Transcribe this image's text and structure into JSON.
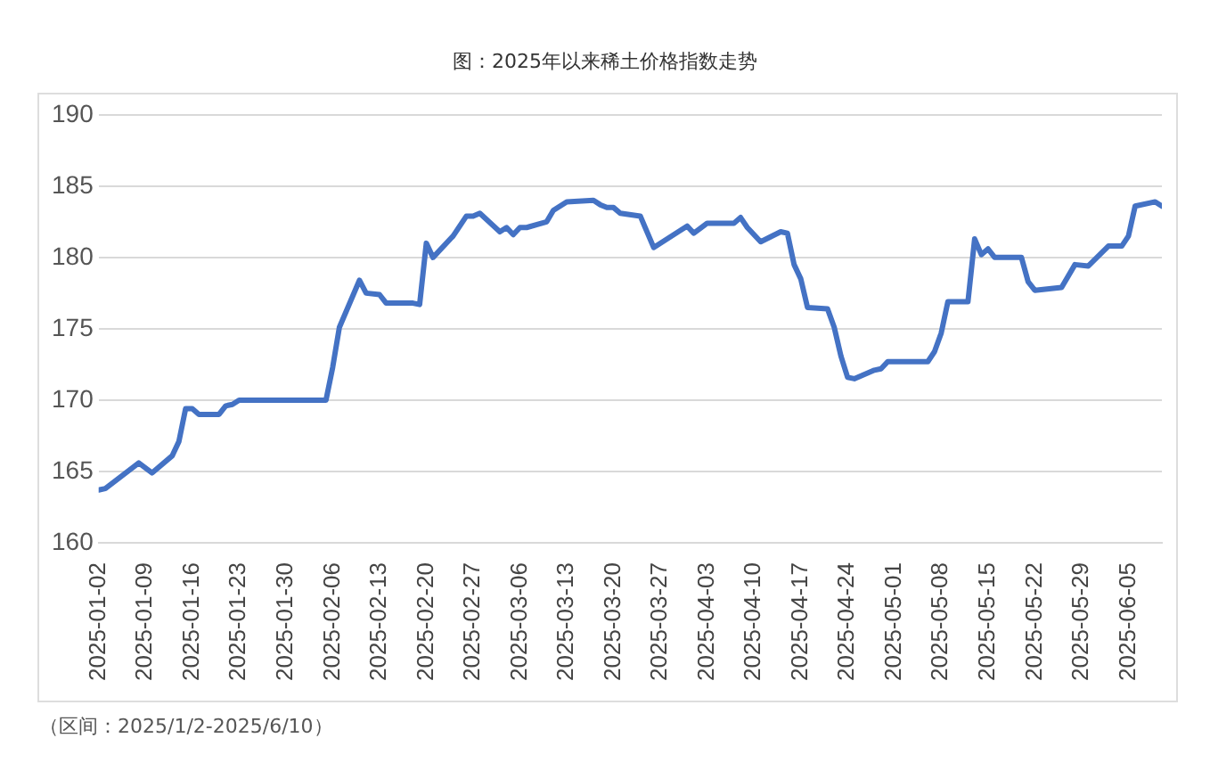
{
  "chart_data": {
    "type": "line",
    "title": "图：2025年以来稀土价格指数走势",
    "annotations": [
      "（区间：2025/1/2-2025/6/10）"
    ],
    "x": [
      "2025-01-02",
      "2025-01-03",
      "2025-01-08",
      "2025-01-10",
      "2025-01-13",
      "2025-01-14",
      "2025-01-15",
      "2025-01-16",
      "2025-01-17",
      "2025-01-20",
      "2025-01-21",
      "2025-01-22",
      "2025-01-23",
      "2025-02-05",
      "2025-02-06",
      "2025-02-07",
      "2025-02-10",
      "2025-02-11",
      "2025-02-13",
      "2025-02-14",
      "2025-02-18",
      "2025-02-19",
      "2025-02-20",
      "2025-02-21",
      "2025-02-24",
      "2025-02-26",
      "2025-02-27",
      "2025-02-28",
      "2025-03-03",
      "2025-03-04",
      "2025-03-05",
      "2025-03-06",
      "2025-03-07",
      "2025-03-10",
      "2025-03-11",
      "2025-03-13",
      "2025-03-17",
      "2025-03-18",
      "2025-03-19",
      "2025-03-20",
      "2025-03-21",
      "2025-03-24",
      "2025-03-26",
      "2025-03-31",
      "2025-04-01",
      "2025-04-03",
      "2025-04-07",
      "2025-04-08",
      "2025-04-09",
      "2025-04-11",
      "2025-04-14",
      "2025-04-15",
      "2025-04-16",
      "2025-04-17",
      "2025-04-18",
      "2025-04-21",
      "2025-04-22",
      "2025-04-23",
      "2025-04-24",
      "2025-04-25",
      "2025-04-28",
      "2025-04-29",
      "2025-04-30",
      "2025-05-06",
      "2025-05-07",
      "2025-05-08",
      "2025-05-09",
      "2025-05-12",
      "2025-05-13",
      "2025-05-14",
      "2025-05-15",
      "2025-05-16",
      "2025-05-20",
      "2025-05-21",
      "2025-05-22",
      "2025-05-26",
      "2025-05-28",
      "2025-05-30",
      "2025-06-02",
      "2025-06-04",
      "2025-06-05",
      "2025-06-06",
      "2025-06-09",
      "2025-06-10"
    ],
    "series": [
      {
        "color": "#4472c4",
        "values": [
          163.7,
          163.8,
          165.6,
          164.9,
          166.1,
          167.1,
          169.4,
          169.4,
          169.0,
          169.0,
          169.6,
          169.7,
          170.0,
          170.0,
          172.3,
          175.1,
          178.4,
          177.5,
          177.4,
          176.8,
          176.8,
          176.7,
          181.0,
          180.0,
          181.5,
          182.9,
          182.9,
          183.1,
          181.8,
          182.1,
          181.6,
          182.1,
          182.1,
          182.5,
          183.3,
          183.9,
          184.0,
          183.7,
          183.5,
          183.5,
          183.1,
          182.9,
          180.7,
          182.2,
          181.7,
          182.4,
          182.4,
          182.8,
          182.1,
          181.1,
          181.8,
          181.7,
          179.5,
          178.5,
          176.5,
          176.4,
          175.1,
          173.1,
          171.6,
          171.5,
          172.1,
          172.2,
          172.7,
          172.7,
          173.4,
          174.7,
          176.9,
          176.9,
          181.3,
          180.2,
          180.6,
          180.0,
          180.0,
          178.3,
          177.7,
          177.9,
          179.5,
          179.4,
          180.8,
          180.8,
          181.5,
          183.6,
          183.9,
          183.6
        ]
      }
    ],
    "xlim": [
      "2025-01-02",
      "2025-06-10"
    ],
    "xticks": [
      "2025-01-02",
      "2025-01-09",
      "2025-01-16",
      "2025-01-23",
      "2025-01-30",
      "2025-02-06",
      "2025-02-13",
      "2025-02-20",
      "2025-02-27",
      "2025-03-06",
      "2025-03-13",
      "2025-03-20",
      "2025-03-27",
      "2025-04-03",
      "2025-04-10",
      "2025-04-17",
      "2025-04-24",
      "2025-05-01",
      "2025-05-08",
      "2025-05-15",
      "2025-05-22",
      "2025-05-29",
      "2025-06-05"
    ],
    "ylim": [
      160,
      190
    ],
    "yticks": [
      160,
      165,
      170,
      175,
      180,
      185,
      190
    ],
    "grid": "y",
    "marker": "none",
    "line_style": "solid"
  }
}
